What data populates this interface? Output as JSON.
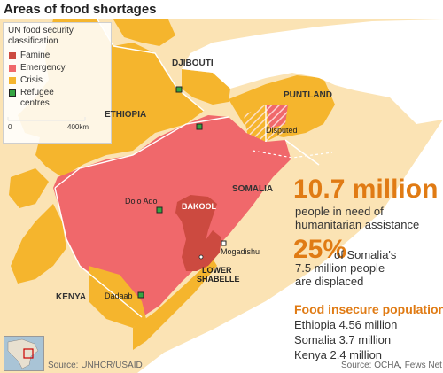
{
  "title": "Areas of food shortages",
  "legend": {
    "heading": "UN food security classification",
    "items": [
      {
        "label": "Famine",
        "color": "#cc4a40"
      },
      {
        "label": "Emergency",
        "color": "#f0686b"
      },
      {
        "label": "Crisis",
        "color": "#f5b52d"
      },
      {
        "label": "Refugee centres",
        "color": "#35a542"
      }
    ],
    "scale_start": "0",
    "scale_end": "400km"
  },
  "colors": {
    "famine": "#cc4a40",
    "emergency": "#f0686b",
    "crisis": "#f5b52d",
    "stressed": "#fbe3b4",
    "water": "#ffffff",
    "accent": "#e07b14"
  },
  "map_labels": {
    "djibouti": "DJIBOUTI",
    "ethiopia": "ETHIOPIA",
    "puntland": "PUNTLAND",
    "disputed": "Disputed",
    "somalia": "SOMALIA",
    "dolo_ado": "Dolo Ado",
    "bakool": "BAKOOL",
    "mogadishu": "Mogadishu",
    "lower_shabelle_1": "LOWER",
    "lower_shabelle_2": "SHABELLE",
    "kenya": "KENYA",
    "dadaab": "Dadaab"
  },
  "stats": {
    "need_number": "10.7 million",
    "need_text": "people in need of humanitarian assistance",
    "displaced_number": "25%",
    "displaced_text_1": "of Somalia's",
    "displaced_text_2": "7.5 million people",
    "displaced_text_3": "are displaced"
  },
  "populations": {
    "title": "Food insecure populations",
    "items": [
      {
        "country": "Ethiopia",
        "value": "4.56 million"
      },
      {
        "country": "Somalia",
        "value": "3.7 million"
      },
      {
        "country": "Kenya",
        "value": "2.4 million"
      }
    ]
  },
  "sources": {
    "left": "Source: UNHCR/USAID",
    "right": "Source: OCHA, Fews Net"
  }
}
